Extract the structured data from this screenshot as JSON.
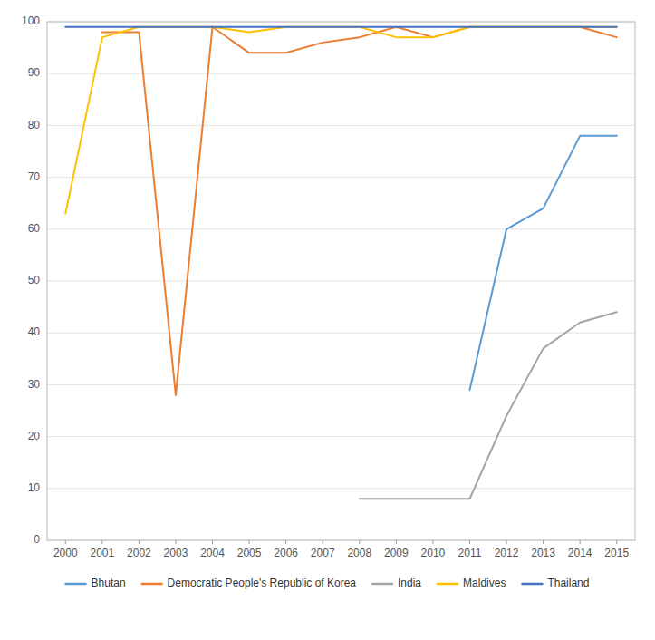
{
  "chart_data": {
    "type": "line",
    "x": [
      2000,
      2001,
      2002,
      2003,
      2004,
      2005,
      2006,
      2007,
      2008,
      2009,
      2010,
      2011,
      2012,
      2013,
      2014,
      2015
    ],
    "series": [
      {
        "name": "Bhutan",
        "color": "#5B9BD5",
        "values": [
          null,
          null,
          null,
          null,
          null,
          null,
          null,
          null,
          null,
          null,
          null,
          29,
          60,
          64,
          78,
          78
        ]
      },
      {
        "name": "Democratic People's Republic of Korea",
        "color": "#ED7D31",
        "values": [
          null,
          98,
          98,
          28,
          99,
          94,
          94,
          96,
          97,
          99,
          97,
          99,
          99,
          99,
          99,
          97
        ]
      },
      {
        "name": "India",
        "color": "#A5A5A5",
        "values": [
          null,
          null,
          null,
          null,
          null,
          null,
          null,
          null,
          8,
          8,
          8,
          8,
          24,
          37,
          42,
          44
        ]
      },
      {
        "name": "Maldives",
        "color": "#FFC000",
        "values": [
          63,
          97,
          99,
          99,
          99,
          98,
          99,
          99,
          99,
          97,
          97,
          99,
          99,
          99,
          99,
          99
        ]
      },
      {
        "name": "Thailand",
        "color": "#4472C4",
        "values": [
          99,
          99,
          99,
          99,
          99,
          99,
          99,
          99,
          99,
          99,
          99,
          99,
          99,
          99,
          99,
          99
        ]
      }
    ],
    "xlim": [
      1999.5,
      2015.5
    ],
    "xticks": [
      2000,
      2001,
      2002,
      2003,
      2004,
      2005,
      2006,
      2007,
      2008,
      2009,
      2010,
      2011,
      2012,
      2013,
      2014,
      2015
    ],
    "ylim": [
      0,
      100
    ],
    "yticks": [
      0,
      10,
      20,
      30,
      40,
      50,
      60,
      70,
      80,
      90,
      100
    ],
    "grid": "y",
    "legend": "bottom"
  }
}
